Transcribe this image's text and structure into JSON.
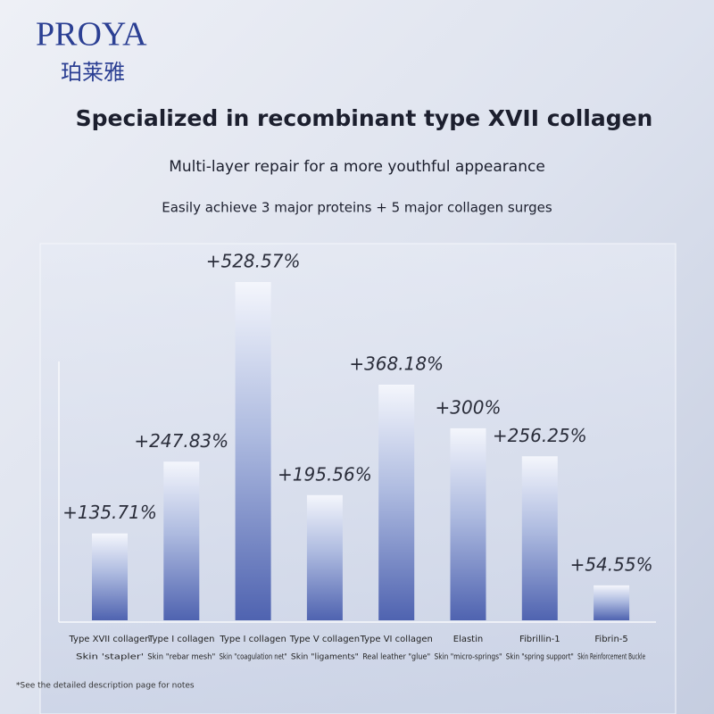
{
  "brand": {
    "name": "PROYA",
    "chinese": "珀莱雅"
  },
  "chart_data": {
    "type": "bar",
    "title": "Specialized in recombinant type XVII collagen",
    "subtitle": "Multi-layer repair for a more youthful appearance",
    "subtitle2": "Easily achieve 3 major proteins + 5 major collagen surges",
    "categories": [
      "Type XVII collagen",
      "Type I collagen",
      "Type I collagen",
      "Type V collagen",
      "Type VI collagen",
      "Elastin",
      "Fibrillin-1",
      "Fibrin-5"
    ],
    "descriptions": [
      "Skin 'stapler'",
      "Skin \"rebar mesh\"",
      "Skin \"coagulation net\"",
      "Skin \"ligaments\"",
      "Real leather \"glue\"",
      "Skin \"micro-springs\"",
      "Skin \"spring support\"",
      "Skin Reinforcement Buckle"
    ],
    "values": [
      135.71,
      247.83,
      528.57,
      195.56,
      368.18,
      300,
      256.25,
      54.55
    ],
    "value_labels": [
      "+135.71%",
      "+247.83%",
      "+528.57%",
      "+195.56%",
      "+368.18%",
      "+300%",
      "+256.25%",
      "+54.55%"
    ],
    "color": "#4f63b0",
    "footnote": "*See the detailed description page for notes"
  }
}
